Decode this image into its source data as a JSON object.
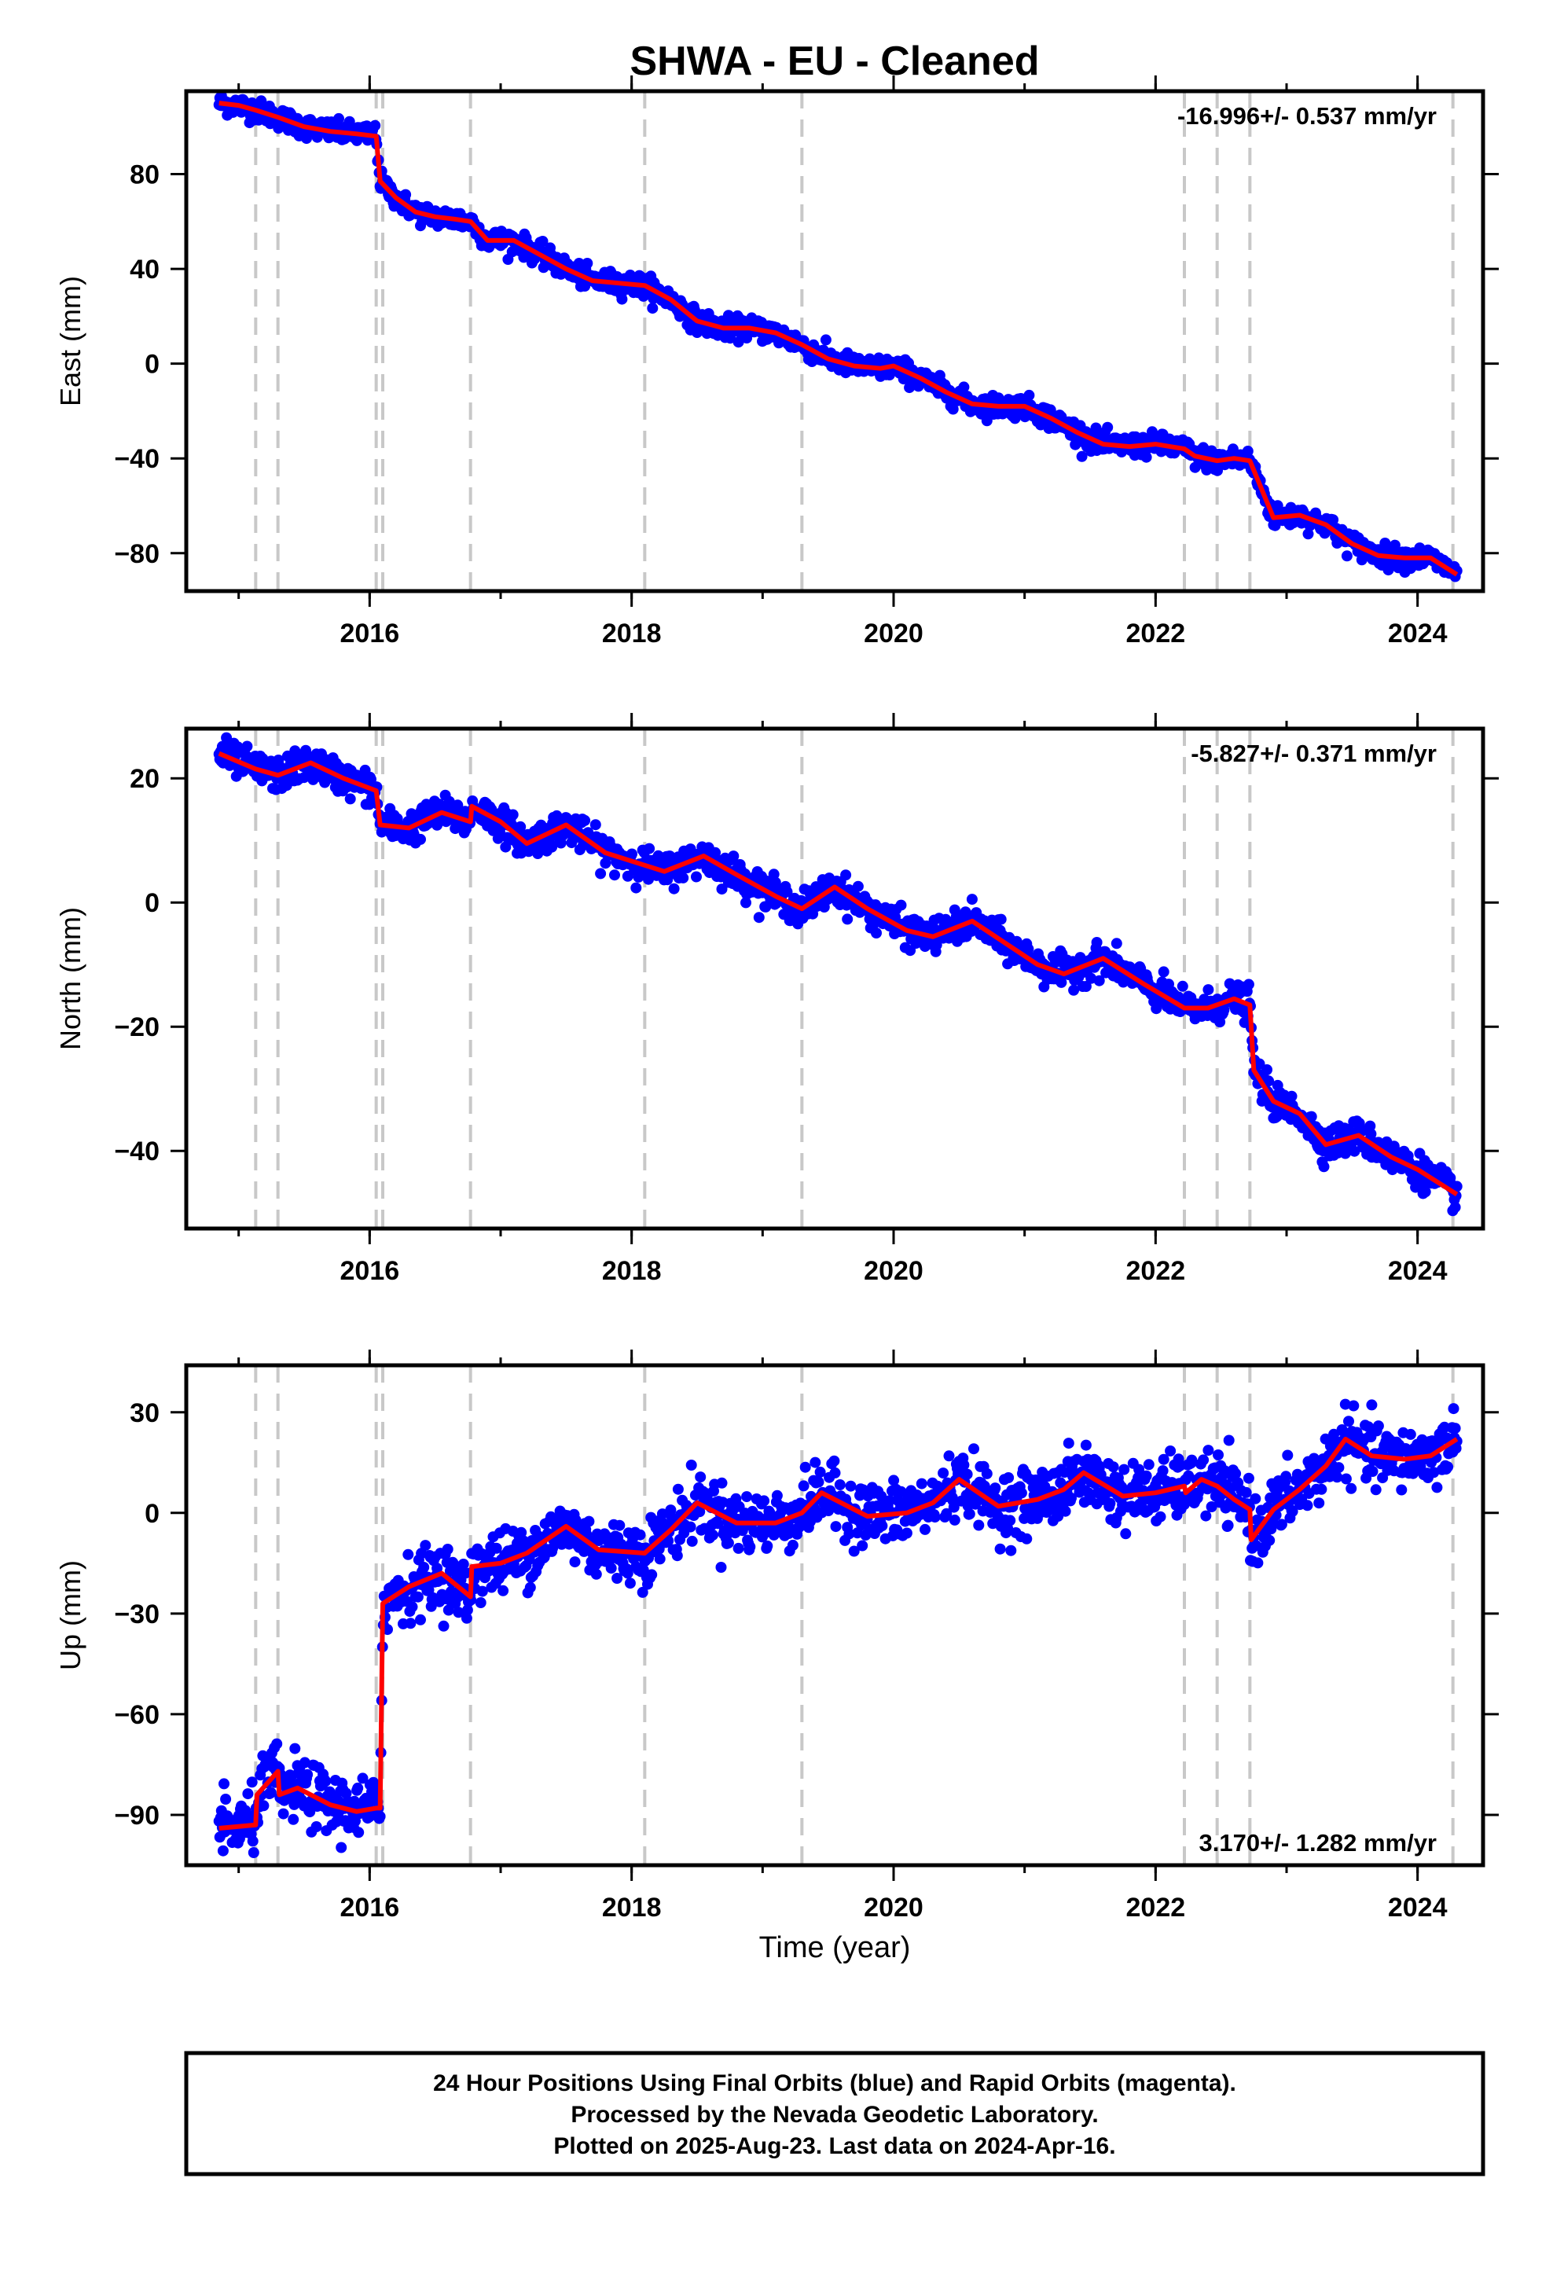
{
  "title": "SHWA  - EU - Cleaned",
  "xlabel": "Time (year)",
  "colors": {
    "data": "#0000ff",
    "model": "#ff0000",
    "event": "#c8c8c8",
    "frame": "#000000"
  },
  "footer": {
    "lines": [
      "24 Hour Positions Using Final Orbits (blue) and Rapid Orbits (magenta).",
      "Processed by the Nevada Geodetic Laboratory.",
      "Plotted on 2025-Aug-23. Last data on 2024-Apr-16."
    ]
  },
  "chart_data": [
    {
      "type": "scatter",
      "panel": "east",
      "ylabel": "East (mm)",
      "rate_label": "-16.996+/- 0.537 mm/yr",
      "xlim": [
        2014.6,
        2024.5
      ],
      "ylim": [
        -96,
        115
      ],
      "xticks": [
        2016,
        2018,
        2020,
        2022,
        2024
      ],
      "yticks": [
        80,
        40,
        0,
        -40,
        -80
      ],
      "event_lines": [
        2015.13,
        2015.3,
        2016.05,
        2016.1,
        2016.77,
        2018.1,
        2019.3,
        2022.22,
        2022.47,
        2022.72,
        2024.27
      ],
      "model": {
        "x": [
          2014.85,
          2015.0,
          2015.13,
          2015.3,
          2015.5,
          2015.7,
          2015.9,
          2016.05,
          2016.08,
          2016.2,
          2016.35,
          2016.5,
          2016.65,
          2016.77,
          2016.9,
          2017.1,
          2017.3,
          2017.5,
          2017.7,
          2017.9,
          2018.1,
          2018.3,
          2018.5,
          2018.7,
          2018.9,
          2019.1,
          2019.3,
          2019.5,
          2019.7,
          2019.9,
          2020.0,
          2020.2,
          2020.4,
          2020.6,
          2020.8,
          2021.0,
          2021.2,
          2021.4,
          2021.6,
          2021.8,
          2022.0,
          2022.22,
          2022.3,
          2022.47,
          2022.6,
          2022.72,
          2022.9,
          2023.1,
          2023.3,
          2023.5,
          2023.7,
          2023.9,
          2024.1,
          2024.3
        ],
        "y": [
          110,
          109,
          107,
          104,
          100,
          98,
          97,
          96,
          77,
          70,
          64,
          62,
          61,
          60,
          52,
          52,
          46,
          40,
          35,
          34,
          33,
          27,
          18,
          15,
          15,
          13,
          8,
          2,
          -1,
          -2,
          -1,
          -6,
          -12,
          -17,
          -18,
          -18,
          -23,
          -29,
          -34,
          -35,
          -34,
          -36,
          -39,
          -41,
          -40,
          -41,
          -65,
          -64,
          -68,
          -76,
          -81,
          -82,
          -82,
          -89
        ]
      },
      "data_noise": 2.3
    },
    {
      "type": "scatter",
      "panel": "north",
      "ylabel": "North (mm)",
      "rate_label": "-5.827+/- 0.371 mm/yr",
      "xlim": [
        2014.6,
        2024.5
      ],
      "ylim": [
        -52.5,
        28
      ],
      "xticks": [
        2016,
        2018,
        2020,
        2022,
        2024
      ],
      "yticks": [
        20,
        0,
        -20,
        -40
      ],
      "event_lines": [
        2015.13,
        2015.3,
        2016.05,
        2016.1,
        2016.77,
        2018.1,
        2019.3,
        2022.22,
        2022.47,
        2022.72,
        2024.27
      ],
      "model": {
        "x": [
          2014.85,
          2015.13,
          2015.3,
          2015.55,
          2015.8,
          2016.05,
          2016.08,
          2016.3,
          2016.55,
          2016.77,
          2016.78,
          2017.0,
          2017.2,
          2017.5,
          2017.8,
          2018.1,
          2018.25,
          2018.55,
          2018.8,
          2019.1,
          2019.3,
          2019.55,
          2019.8,
          2020.1,
          2020.3,
          2020.6,
          2020.85,
          2021.1,
          2021.3,
          2021.6,
          2021.9,
          2022.22,
          2022.4,
          2022.6,
          2022.72,
          2022.75,
          2022.9,
          2023.1,
          2023.3,
          2023.55,
          2023.8,
          2024.0,
          2024.3
        ],
        "y": [
          24,
          21.5,
          20.5,
          22.5,
          20,
          18,
          12.5,
          12,
          14.5,
          13,
          15.5,
          13,
          9.5,
          12.5,
          8,
          6,
          5,
          7.5,
          4.5,
          1,
          -1,
          2.5,
          -1,
          -4.5,
          -5.5,
          -3,
          -6.5,
          -10,
          -11.5,
          -9,
          -13,
          -17,
          -17,
          -15.5,
          -16.5,
          -27,
          -32,
          -34,
          -39,
          -37.5,
          -41,
          -43,
          -47
        ]
      },
      "data_noise": 1.3
    },
    {
      "type": "scatter",
      "panel": "up",
      "ylabel": "Up (mm)",
      "rate_label": "3.170+/- 1.282 mm/yr",
      "xlim": [
        2014.6,
        2024.5
      ],
      "ylim": [
        -105,
        44
      ],
      "xticks": [
        2016,
        2018,
        2020,
        2022,
        2024
      ],
      "yticks": [
        30,
        0,
        -30,
        -60,
        -90
      ],
      "event_lines": [
        2015.13,
        2015.3,
        2016.05,
        2016.1,
        2016.77,
        2018.1,
        2019.3,
        2022.22,
        2022.47,
        2022.72,
        2024.27
      ],
      "model": {
        "x": [
          2014.85,
          2015.13,
          2015.14,
          2015.3,
          2015.31,
          2015.45,
          2015.7,
          2015.9,
          2016.05,
          2016.08,
          2016.1,
          2016.3,
          2016.55,
          2016.77,
          2016.78,
          2017.0,
          2017.2,
          2017.5,
          2017.75,
          2018.1,
          2018.3,
          2018.5,
          2018.8,
          2019.1,
          2019.3,
          2019.45,
          2019.8,
          2020.1,
          2020.3,
          2020.5,
          2020.8,
          2021.1,
          2021.3,
          2021.45,
          2021.75,
          2022.0,
          2022.22,
          2022.23,
          2022.35,
          2022.47,
          2022.6,
          2022.72,
          2022.73,
          2022.9,
          2023.1,
          2023.3,
          2023.45,
          2023.65,
          2023.9,
          2024.1,
          2024.3
        ],
        "y": [
          -94,
          -93,
          -84,
          -77,
          -84,
          -82,
          -87,
          -89,
          -88,
          -88,
          -27,
          -22,
          -18,
          -25,
          -16,
          -15,
          -12,
          -4,
          -11,
          -12,
          -5,
          3,
          -3,
          -3,
          0,
          6,
          -1,
          0,
          3,
          10,
          2,
          4,
          7,
          12,
          5,
          6,
          8,
          6,
          10,
          8,
          4,
          1,
          -8,
          1,
          7,
          14,
          22,
          17,
          16,
          17,
          22
        ]
      },
      "data_noise": 4.6
    }
  ]
}
